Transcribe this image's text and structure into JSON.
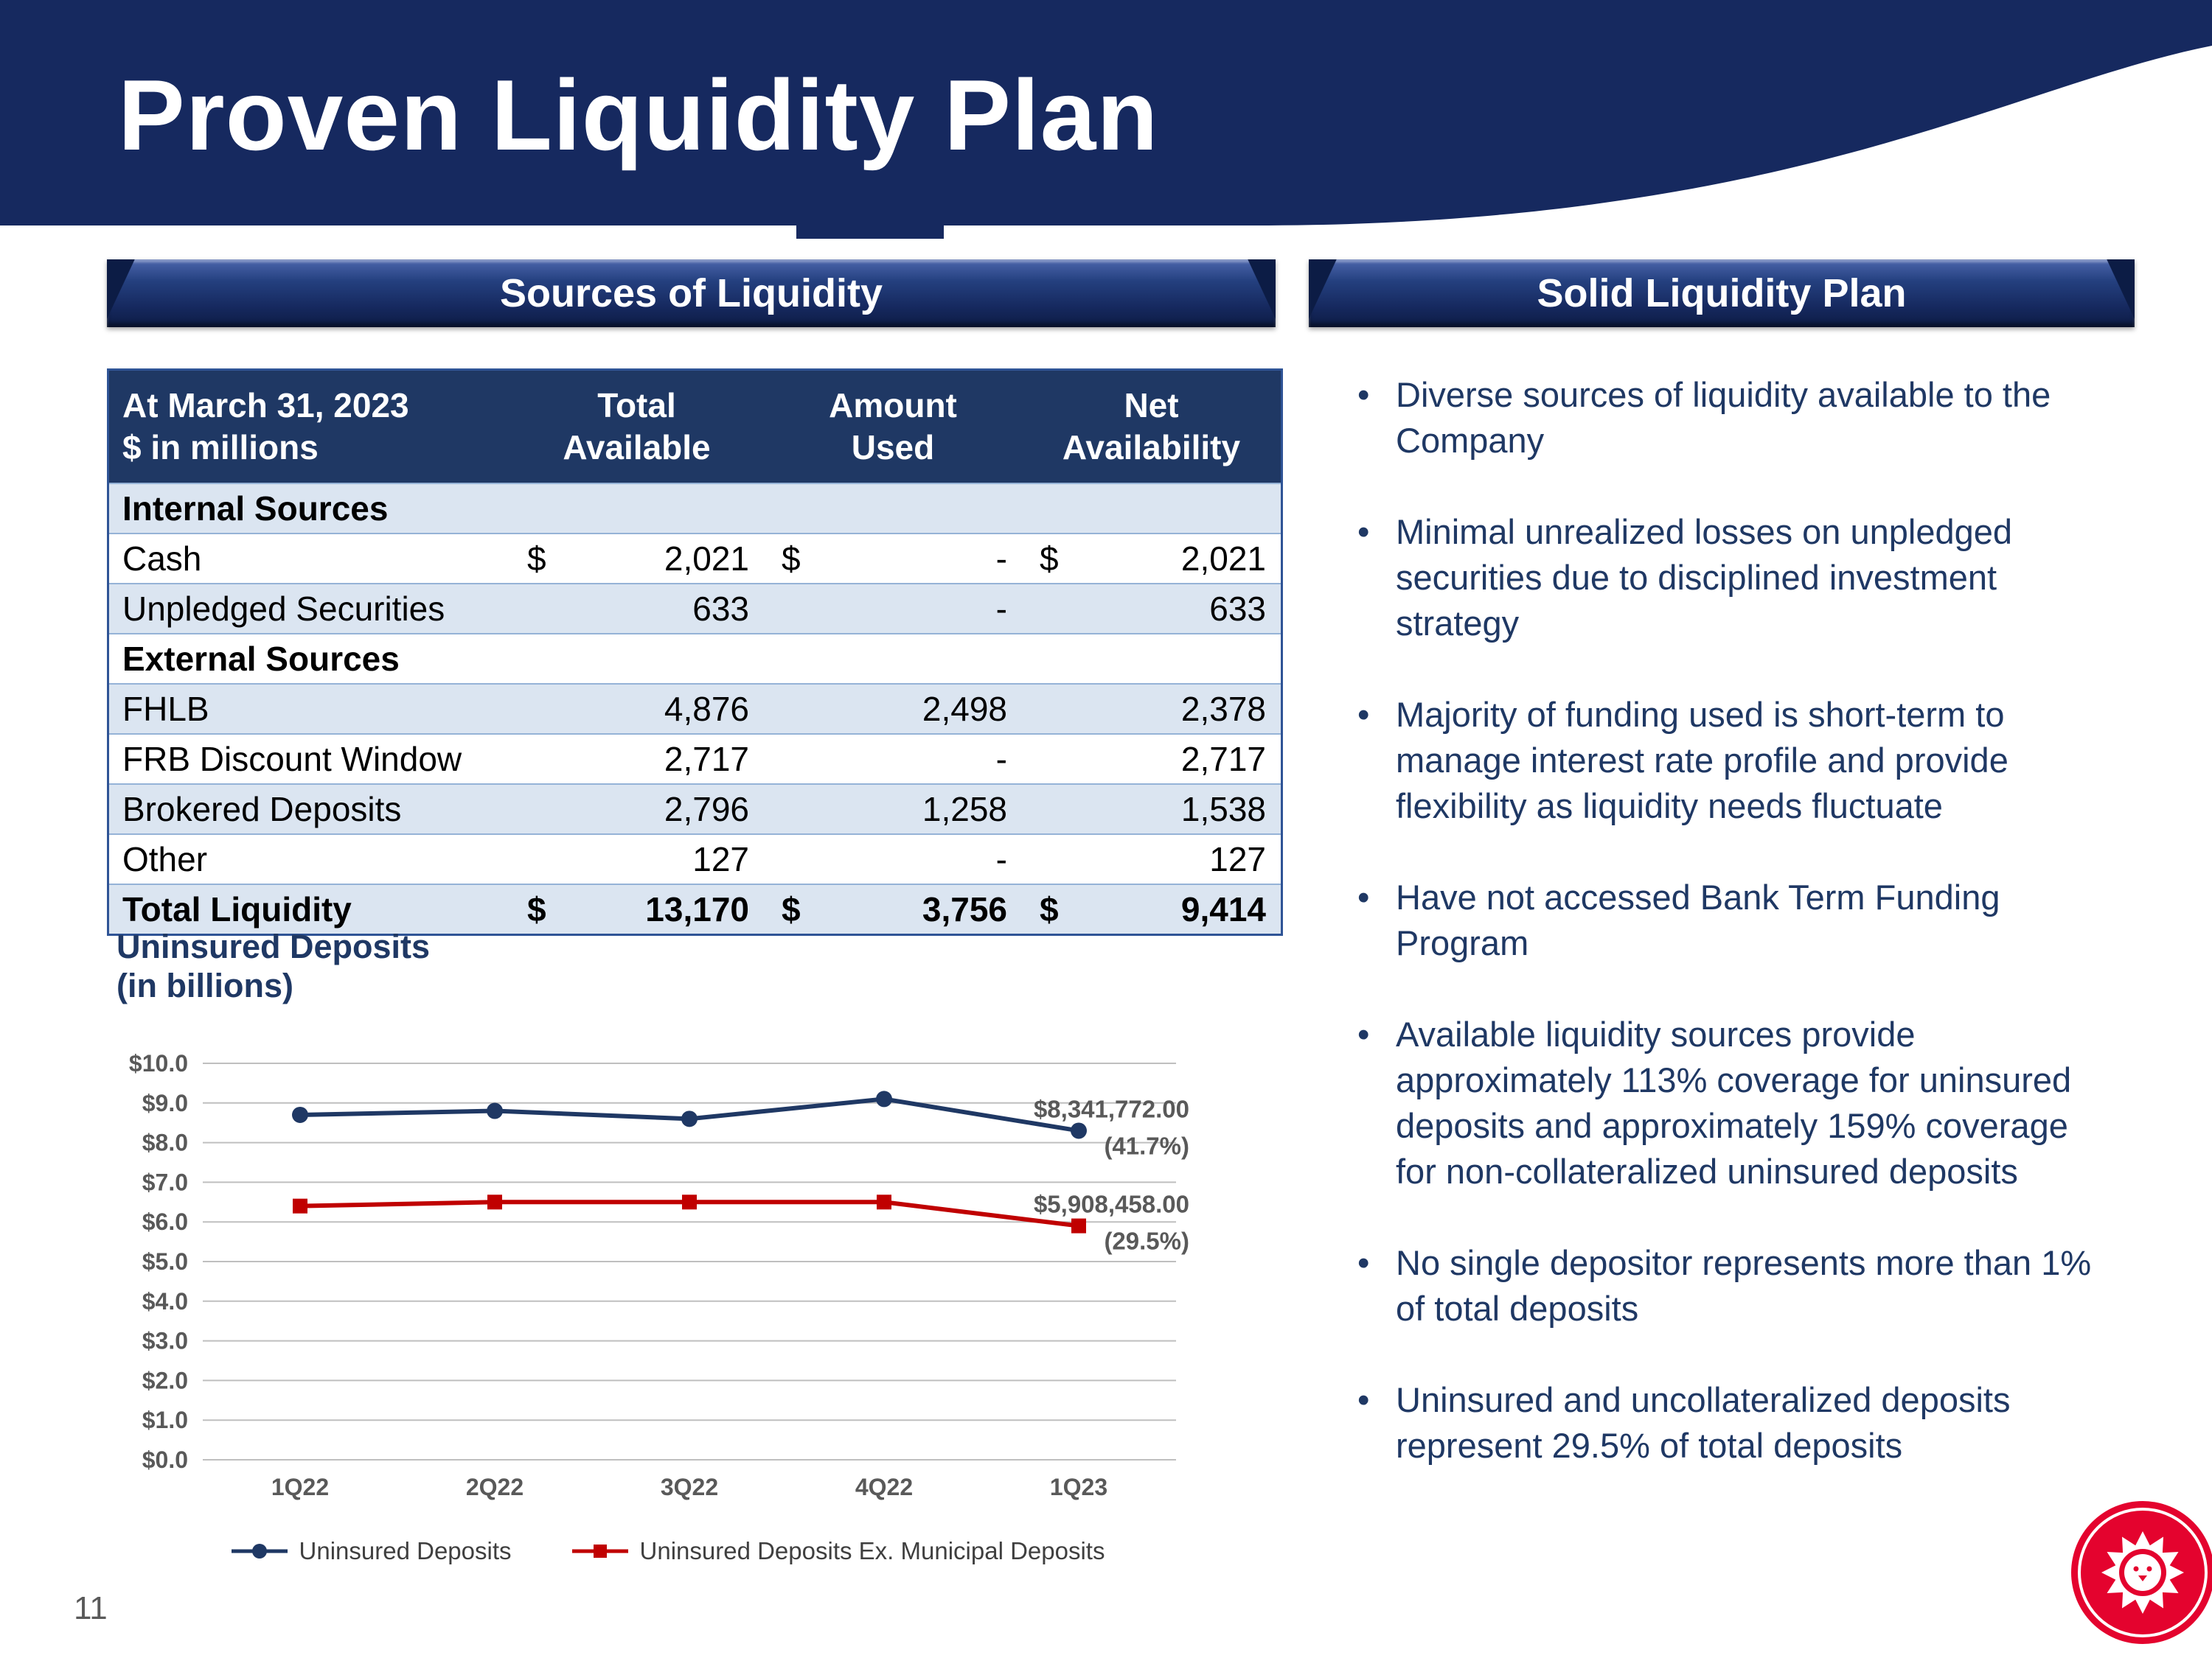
{
  "slide": {
    "title": "Proven Liquidity Plan",
    "page_number": "11"
  },
  "left_panel": {
    "section_header": "Sources of Liquidity",
    "table": {
      "header": {
        "col1_line1": "At March 31, 2023",
        "col1_line2": "$ in millions",
        "col2_line1": "Total",
        "col2_line2": "Available",
        "col3_line1": "Amount",
        "col3_line2": "Used",
        "col4_line1": "Net",
        "col4_line2": "Availability"
      },
      "rows": [
        {
          "label": "Internal Sources"
        },
        {
          "label": "Cash",
          "d1": "$",
          "v1": "2,021",
          "d2": "$",
          "v2": "-",
          "d3": "$",
          "v3": "2,021"
        },
        {
          "label": "Unpledged Securities",
          "d1": "",
          "v1": "633",
          "d2": "",
          "v2": "-",
          "d3": "",
          "v3": "633"
        },
        {
          "label": "External Sources"
        },
        {
          "label": "FHLB",
          "d1": "",
          "v1": "4,876",
          "d2": "",
          "v2": "2,498",
          "d3": "",
          "v3": "2,378"
        },
        {
          "label": "FRB Discount Window",
          "d1": "",
          "v1": "2,717",
          "d2": "",
          "v2": "-",
          "d3": "",
          "v3": "2,717"
        },
        {
          "label": "Brokered Deposits",
          "d1": "",
          "v1": "2,796",
          "d2": "",
          "v2": "1,258",
          "d3": "",
          "v3": "1,538"
        },
        {
          "label": "Other",
          "d1": "",
          "v1": "127",
          "d2": "",
          "v2": "-",
          "d3": "",
          "v3": "127"
        },
        {
          "label": "Total Liquidity",
          "d1": "$",
          "v1": "13,170",
          "d2": "$",
          "v2": "3,756",
          "d3": "$",
          "v3": "9,414"
        }
      ]
    },
    "chart_title_line1": "Uninsured Deposits",
    "chart_title_line2": "(in billions)"
  },
  "chart_data": {
    "type": "line",
    "title": "Uninsured Deposits (in billions)",
    "categories": [
      "1Q22",
      "2Q22",
      "3Q22",
      "4Q22",
      "1Q23"
    ],
    "series": [
      {
        "name": "Uninsured Deposits",
        "color": "#1f3864",
        "marker": "circle",
        "values": [
          8.7,
          8.8,
          8.6,
          9.1,
          8.3
        ],
        "annotation": [
          "$8,341,772.00",
          "(41.7%)"
        ]
      },
      {
        "name": "Uninsured Deposits Ex. Municipal Deposits",
        "color": "#c00000",
        "marker": "square",
        "values": [
          6.4,
          6.5,
          6.5,
          6.5,
          5.9
        ],
        "annotation": [
          "$5,908,458.00",
          "(29.5%)"
        ]
      }
    ],
    "ylim": [
      0,
      10
    ],
    "ytick_step": 1,
    "ylabel_prefix": "$",
    "grid": true,
    "legend_position": "bottom"
  },
  "right_panel": {
    "section_header": "Solid Liquidity Plan",
    "bullets": [
      "Diverse sources of liquidity available to the Company",
      "Minimal unrealized losses on unpledged securities due to disciplined investment strategy",
      "Majority of funding used is short-term to manage interest rate profile and provide flexibility as liquidity needs fluctuate",
      "Have not accessed Bank Term Funding Program",
      "Available liquidity sources provide approximately 113% coverage for uninsured deposits and approximately 159% coverage for non-collateralized uninsured deposits",
      "No single depositor represents more than 1% of total deposits",
      "Uninsured and uncollateralized deposits represent 29.5% of total deposits"
    ]
  },
  "colors": {
    "navy_band": "#16295f",
    "table_header": "#1f3864",
    "row_alt": "#dbe5f1",
    "navy_series": "#1f3864",
    "red_series": "#c00000",
    "logo_red": "#e4032e",
    "gray_text": "#595959"
  }
}
